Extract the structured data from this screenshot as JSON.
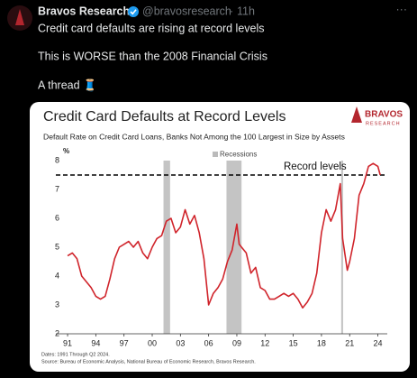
{
  "tweet": {
    "name": "Bravos Research",
    "handle": "@bravosresearch",
    "separator": "·",
    "time": "11h",
    "more": "···",
    "lines": [
      "Credit card defaults are rising at record levels",
      "This is WORSE than the 2008 Financial Crisis",
      "A thread 🧵"
    ]
  },
  "chart_data": {
    "type": "line",
    "title": "Credit Card Defaults at Record Levels",
    "subtitle": "Default Rate on Credit Card Loans, Banks Not Among the 100 Largest in Size by Assets",
    "logo": {
      "name": "BRAVOS",
      "sub": "RESEARCH"
    },
    "y_unit": "%",
    "recessions_label": "Recessions",
    "recessions": [
      [
        2001.2,
        2001.9
      ],
      [
        2007.9,
        2009.5
      ],
      [
        2020.1,
        2020.3
      ]
    ],
    "record_level": 7.5,
    "record_label": "Record levels",
    "notes": [
      "Dates: 1991 Through Q2 2024.",
      "Source: Bureau of Economic Analysis, National Bureau of Economic Research, Bravos Research."
    ],
    "color": "#d0242b",
    "x": [
      1991,
      1991.5,
      1992,
      1992.5,
      1993,
      1993.5,
      1994,
      1994.5,
      1995,
      1995.5,
      1996,
      1996.5,
      1997,
      1997.5,
      1998,
      1998.5,
      1999,
      1999.5,
      2000,
      2000.5,
      2001,
      2001.5,
      2002,
      2002.5,
      2003,
      2003.5,
      2004,
      2004.5,
      2005,
      2005.5,
      2006,
      2006.5,
      2007,
      2007.5,
      2008,
      2008.5,
      2009,
      2009.25,
      2009.5,
      2010,
      2010.5,
      2011,
      2011.5,
      2012,
      2012.5,
      2013,
      2013.5,
      2014,
      2014.5,
      2015,
      2015.5,
      2016,
      2016.5,
      2017,
      2017.5,
      2018,
      2018.5,
      2019,
      2019.5,
      2020,
      2020.25,
      2020.75,
      2021,
      2021.5,
      2022,
      2022.5,
      2023,
      2023.5,
      2024,
      2024.25
    ],
    "values": [
      4.7,
      4.8,
      4.6,
      4.0,
      3.8,
      3.6,
      3.3,
      3.2,
      3.3,
      3.9,
      4.6,
      5.0,
      5.1,
      5.2,
      5.0,
      5.2,
      4.8,
      4.6,
      5.0,
      5.3,
      5.4,
      5.9,
      6.0,
      5.5,
      5.7,
      6.3,
      5.8,
      6.1,
      5.5,
      4.6,
      3.0,
      3.4,
      3.6,
      3.9,
      4.5,
      4.9,
      5.8,
      5.1,
      5.0,
      4.8,
      4.1,
      4.3,
      3.6,
      3.5,
      3.2,
      3.2,
      3.3,
      3.4,
      3.3,
      3.4,
      3.2,
      2.9,
      3.1,
      3.4,
      4.1,
      5.5,
      6.3,
      5.9,
      6.3,
      7.2,
      5.3,
      4.2,
      4.5,
      5.3,
      6.8,
      7.2,
      7.8,
      7.9,
      7.8,
      7.5
    ],
    "xlim": [
      1989.75,
      2025
    ],
    "xticks": [
      {
        "value": 1991,
        "label": "91"
      },
      {
        "value": 1994,
        "label": "94"
      },
      {
        "value": 1997,
        "label": "97"
      },
      {
        "value": 2000,
        "label": "00"
      },
      {
        "value": 2003,
        "label": "03"
      },
      {
        "value": 2006,
        "label": "06"
      },
      {
        "value": 2009,
        "label": "09"
      },
      {
        "value": 2012,
        "label": "12"
      },
      {
        "value": 2015,
        "label": "15"
      },
      {
        "value": 2018,
        "label": "18"
      },
      {
        "value": 2021,
        "label": "21"
      },
      {
        "value": 2024,
        "label": "24"
      }
    ],
    "ylim": [
      2,
      8
    ],
    "yticks": [
      2,
      3,
      4,
      5,
      6,
      7,
      8
    ]
  }
}
